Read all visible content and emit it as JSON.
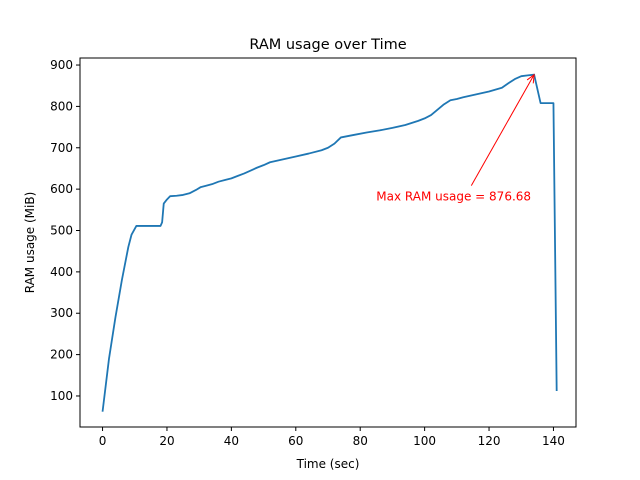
{
  "chart_data": {
    "type": "line",
    "title": "RAM usage over Time",
    "xlabel": "Time (sec)",
    "ylabel": "RAM usage (MiB)",
    "xlim": [
      -7,
      147
    ],
    "ylim": [
      25,
      917
    ],
    "xticks": [
      0,
      20,
      40,
      60,
      80,
      100,
      120,
      140
    ],
    "yticks": [
      100,
      200,
      300,
      400,
      500,
      600,
      700,
      800,
      900
    ],
    "grid": false,
    "line_color": "#1f77b4",
    "series": [
      {
        "x": [
          0,
          2,
          4,
          6,
          8,
          9,
          10.5,
          12,
          14,
          16,
          18,
          18.5,
          19,
          20,
          21,
          23,
          25,
          27,
          29,
          30.5,
          32,
          34,
          36,
          38,
          40,
          42,
          44,
          46,
          48,
          50,
          52,
          56,
          60,
          64,
          68,
          70,
          72,
          74,
          78,
          82,
          86,
          90,
          94,
          98,
          100,
          102,
          104,
          106,
          108,
          110,
          112,
          116,
          120,
          124,
          126,
          128,
          130,
          132,
          134,
          136,
          138,
          140,
          141
        ],
        "y": [
          62,
          190,
          290,
          380,
          460,
          490,
          511,
          511,
          511,
          511,
          511,
          520,
          565,
          575,
          583,
          584,
          586,
          590,
          598,
          605,
          608,
          612,
          618,
          622,
          626,
          632,
          638,
          645,
          652,
          658,
          665,
          672,
          679,
          686,
          694,
          700,
          710,
          725,
          731,
          737,
          742,
          748,
          755,
          765,
          771,
          779,
          792,
          805,
          815,
          818,
          822,
          829,
          836,
          845,
          856,
          866,
          873,
          875,
          876.68,
          808,
          808,
          808,
          112
        ]
      }
    ],
    "annotation": {
      "text": "Max RAM usage = 876.68",
      "point": [
        134,
        876.68
      ],
      "text_position": [
        85,
        582
      ],
      "color": "#ff0000"
    }
  }
}
